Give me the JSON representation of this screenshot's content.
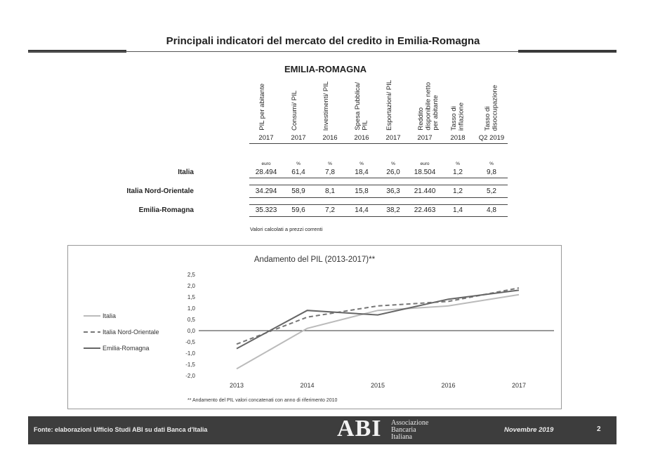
{
  "page_title": "Principali indicatori del mercato del credito in Emilia-Romagna",
  "table": {
    "title": "EMILIA-ROMAGNA",
    "columns": [
      {
        "header": "PIL per abitante",
        "year": "2017",
        "unit": "euro"
      },
      {
        "header": "Consumi/ PIL",
        "year": "2017",
        "unit": "%"
      },
      {
        "header": "Investimenti/ PIL",
        "year": "2016",
        "unit": "%"
      },
      {
        "header": "Spesa Pubblica/\nPIL",
        "year": "2016",
        "unit": "%"
      },
      {
        "header": "Esportazioni/ PIL",
        "year": "2017",
        "unit": "%"
      },
      {
        "header": "Reddito\ndisponibile netto\nper abitante",
        "year": "2017",
        "unit": "euro"
      },
      {
        "header": "Tasso di\ninflazione",
        "year": "2018",
        "unit": "%"
      },
      {
        "header": "Tasso di\ndisoccupazione",
        "year": "Q2 2019",
        "unit": "%"
      }
    ],
    "rows": [
      {
        "label": "Italia",
        "values": [
          "28.494",
          "61,4",
          "7,8",
          "18,4",
          "26,0",
          "18.504",
          "1,2",
          "9,8"
        ]
      },
      {
        "label": "Italia Nord-Orientale",
        "values": [
          "34.294",
          "58,9",
          "8,1",
          "15,8",
          "36,3",
          "21.440",
          "1,2",
          "5,2"
        ]
      },
      {
        "label": "Emilia-Romagna",
        "values": [
          "35.323",
          "59,6",
          "7,2",
          "14,4",
          "38,2",
          "22.463",
          "1,4",
          "4,8"
        ]
      }
    ],
    "note": "Valori calcolati a prezzi correnti"
  },
  "chart_data": {
    "type": "line",
    "title": "Andamento del PIL (2013-2017)**",
    "x": [
      "2013",
      "2014",
      "2015",
      "2016",
      "2017"
    ],
    "ylim": [
      -2.0,
      2.5
    ],
    "yticks": [
      "2,5",
      "2,0",
      "1,5",
      "1,0",
      "0,5",
      "0,0",
      "-0,5",
      "-1,0",
      "-1,5",
      "-2,0"
    ],
    "series": [
      {
        "name": "Italia",
        "values": [
          -1.7,
          0.1,
          0.9,
          1.1,
          1.6
        ],
        "color": "#bbbbbb",
        "dash": ""
      },
      {
        "name": "Italia Nord-Orientale",
        "values": [
          -0.6,
          0.6,
          1.1,
          1.3,
          1.9
        ],
        "color": "#777777",
        "dash": "6,4"
      },
      {
        "name": "Emilia-Romagna",
        "values": [
          -0.8,
          0.9,
          0.7,
          1.4,
          1.8
        ],
        "color": "#666666",
        "dash": ""
      }
    ],
    "footnote": "** Andamento del PIL  valori concatenati con anno di riferimento 2010",
    "legend_position": "left"
  },
  "footer": {
    "source": "Fonte: elaborazioni Ufficio Studi ABI su dati Banca d'Italia",
    "logo_mark": "ABI",
    "logo_lines": [
      "Associazione",
      "Bancaria",
      "Italiana"
    ],
    "date": "Novembre 2019",
    "page": "2"
  }
}
